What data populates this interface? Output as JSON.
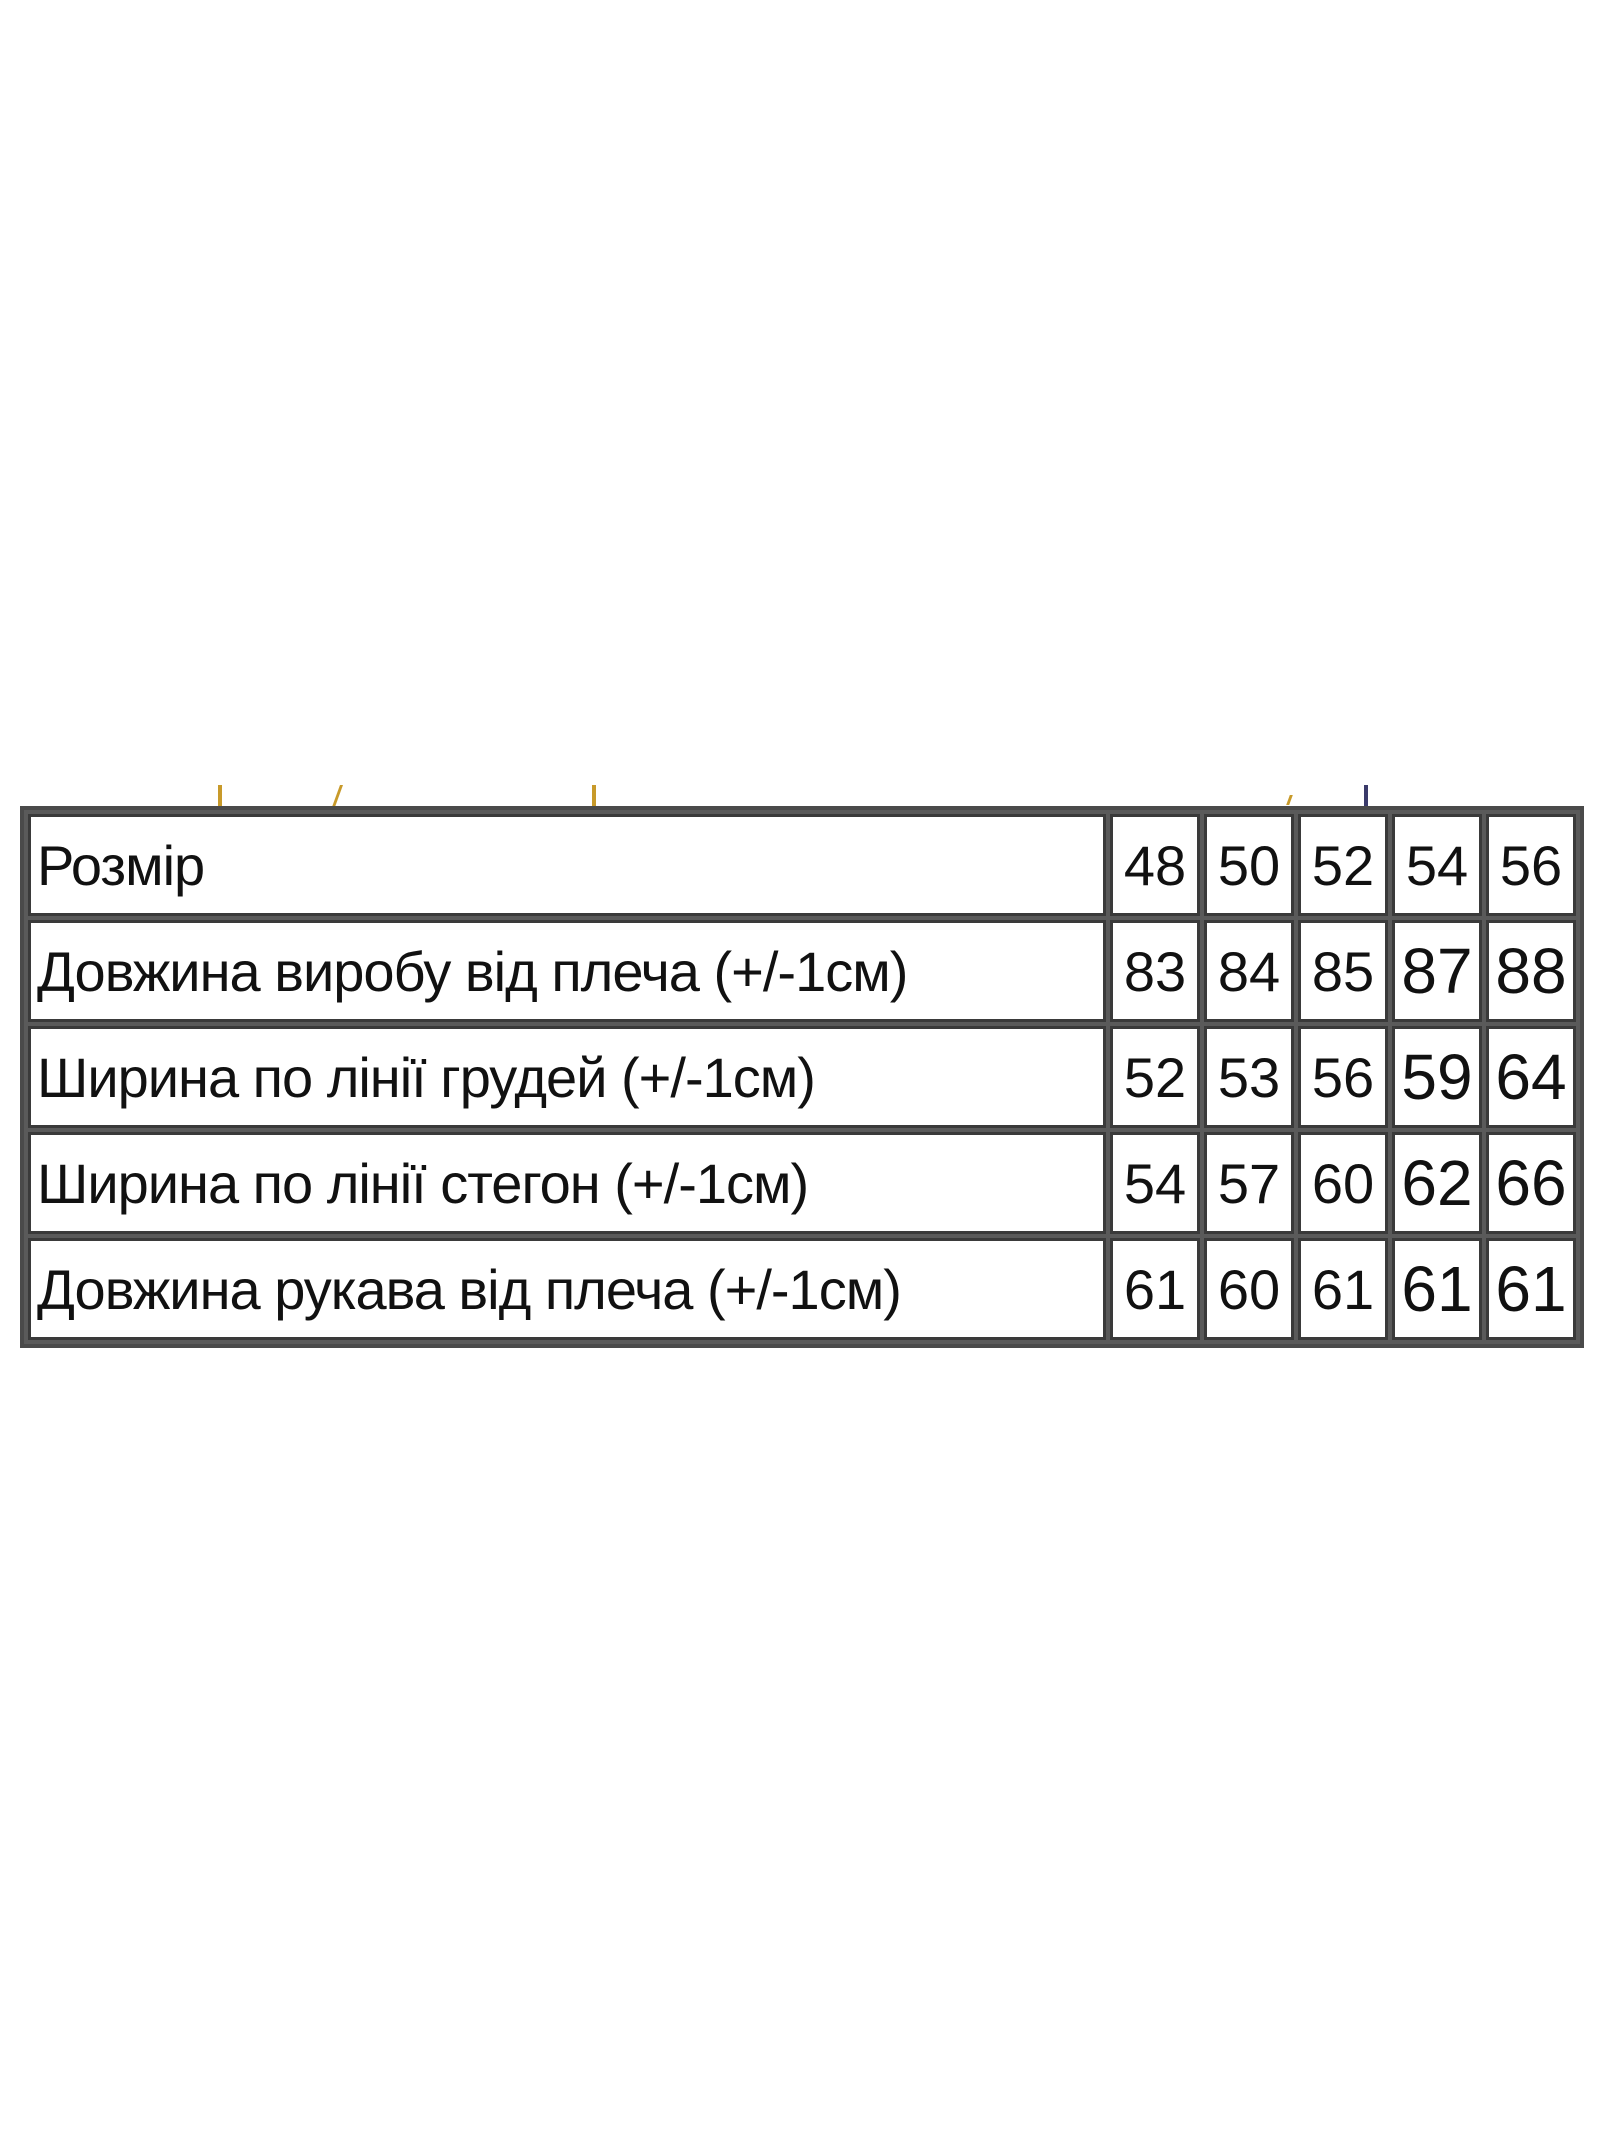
{
  "size_table": {
    "header": {
      "label": "Розмір",
      "sizes": [
        "48",
        "50",
        "52",
        "54",
        "56"
      ]
    },
    "rows": [
      {
        "label": "Довжина виробу від плеча (+/-1см)",
        "values": [
          "83",
          "84",
          "85",
          "87",
          "88"
        ]
      },
      {
        "label": "Ширина по лінії грудей (+/-1см)",
        "values": [
          "52",
          "53",
          "56",
          "59",
          "64"
        ]
      },
      {
        "label": "Ширина по лінії стегон (+/-1см)",
        "values": [
          "54",
          "57",
          "60",
          "62",
          "66"
        ]
      },
      {
        "label": "Довжина рукава від плеча (+/-1см)",
        "values": [
          "61",
          "60",
          "61",
          "61",
          "61"
        ]
      }
    ],
    "border_color": "#555555"
  }
}
